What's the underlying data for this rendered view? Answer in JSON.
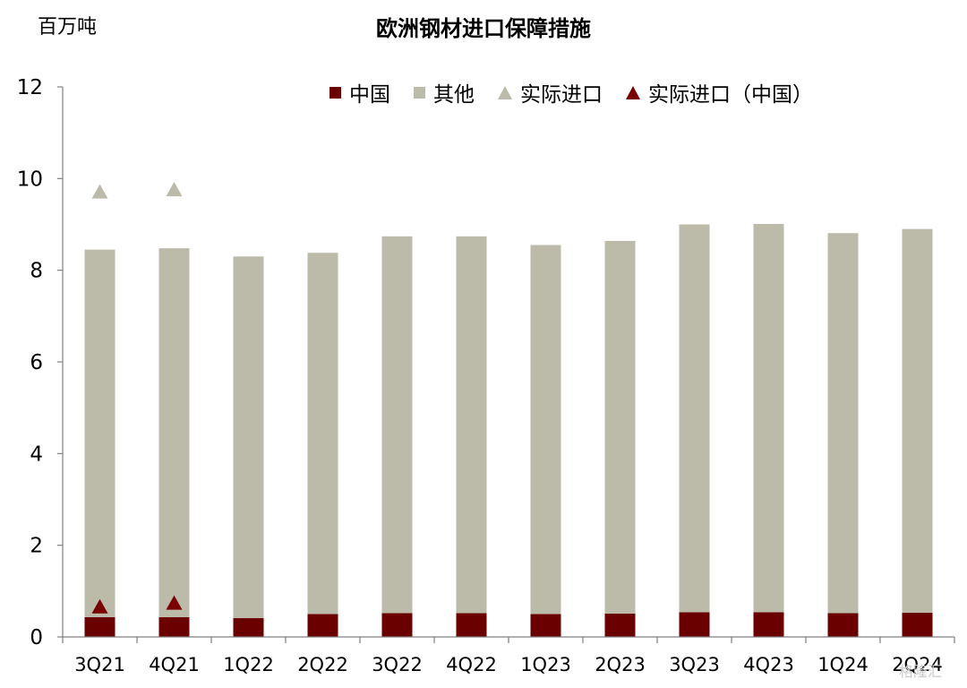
{
  "chart_data": {
    "type": "bar",
    "stacked": true,
    "title": "欧洲钢材进口保障措施",
    "ylabel": "百万吨",
    "xlabel": "",
    "ylim": [
      0,
      12
    ],
    "yticks": [
      0,
      2,
      4,
      6,
      8,
      10,
      12
    ],
    "grid": false,
    "legend_position": "top",
    "categories": [
      "3Q21",
      "4Q21",
      "1Q22",
      "2Q22",
      "3Q22",
      "4Q22",
      "1Q23",
      "2Q23",
      "3Q23",
      "4Q23",
      "1Q24",
      "2Q24"
    ],
    "series": [
      {
        "name": "中国",
        "kind": "bar",
        "color": "#6b0000",
        "values": [
          0.43,
          0.43,
          0.41,
          0.5,
          0.52,
          0.52,
          0.5,
          0.51,
          0.54,
          0.54,
          0.52,
          0.53
        ]
      },
      {
        "name": "其他",
        "kind": "bar",
        "color": "#bcbaa9",
        "values": [
          8.02,
          8.05,
          7.89,
          7.88,
          8.22,
          8.22,
          8.05,
          8.13,
          8.46,
          8.47,
          8.29,
          8.37
        ]
      },
      {
        "name": "实际进口",
        "kind": "marker",
        "color": "#bcbaa9",
        "values": [
          9.72,
          9.77,
          null,
          null,
          null,
          null,
          null,
          null,
          null,
          null,
          null,
          null
        ]
      },
      {
        "name": "实际进口（中国）",
        "kind": "marker",
        "color": "#7a0000",
        "values": [
          0.67,
          0.75,
          null,
          null,
          null,
          null,
          null,
          null,
          null,
          null,
          null,
          null
        ]
      }
    ]
  },
  "watermark": "格隆汇"
}
